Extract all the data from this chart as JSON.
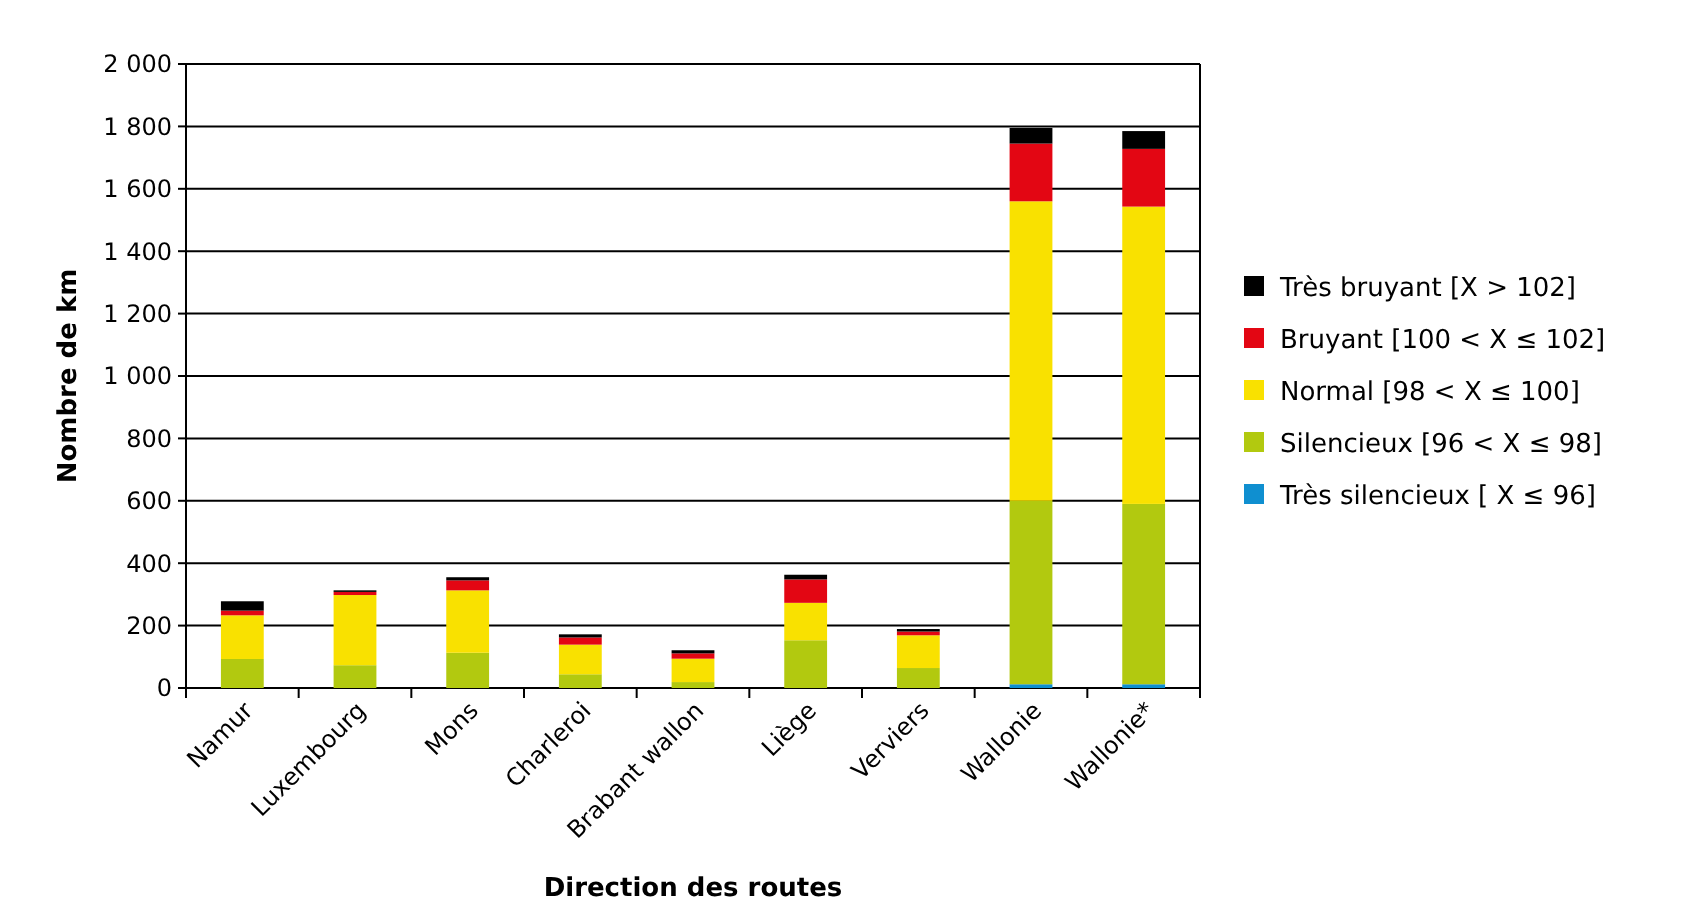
{
  "chart_data": {
    "type": "bar",
    "stacked": true,
    "xlabel": "Direction des routes",
    "ylabel": "Nombre de km",
    "categories": [
      "Namur",
      "Luxembourg",
      "Mons",
      "Charleroi",
      "Brabant wallon",
      "Liège",
      "Verviers",
      "Wallonie",
      "Wallonie*"
    ],
    "series": [
      {
        "name": "Très silencieux [ X ≤ 96]",
        "color": "#0f8fd0",
        "values": [
          null,
          null,
          null,
          null,
          null,
          null,
          null,
          12,
          12
        ]
      },
      {
        "name": "Silencieux [96 < X ≤ 98]",
        "color": "#b2c90f",
        "values": [
          93,
          73,
          113,
          44,
          19,
          153,
          64,
          588,
          578
        ]
      },
      {
        "name": "Normal [98 < X ≤ 100]",
        "color": "#f9e100",
        "values": [
          140,
          225,
          200,
          95,
          75,
          120,
          105,
          960,
          953
        ]
      },
      {
        "name": "Bruyant [100 < X ≤ 102]",
        "color": "#e30613",
        "values": [
          15,
          10,
          32,
          23,
          17,
          75,
          12,
          185,
          185
        ]
      },
      {
        "name": "Très bruyant [X > 102]",
        "color": "#000000",
        "values": [
          30,
          5,
          10,
          10,
          10,
          15,
          8,
          50,
          57
        ]
      }
    ],
    "ylim": [
      0,
      2000
    ],
    "yticks": [
      0,
      200,
      400,
      600,
      800,
      {
        "value": 1000,
        "label": "1 000"
      },
      {
        "value": 1200,
        "label": "1 200"
      },
      {
        "value": 1400,
        "label": "1 400"
      },
      {
        "value": 1600,
        "label": "1 600"
      },
      {
        "value": 1800,
        "label": "1 800"
      },
      {
        "value": 2000,
        "label": "2 000"
      }
    ],
    "grid": "y",
    "legend": "right"
  }
}
